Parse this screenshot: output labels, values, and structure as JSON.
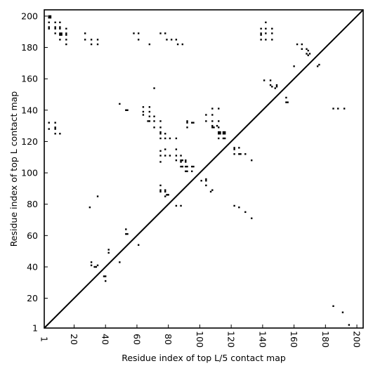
{
  "chart_data": {
    "type": "scatter",
    "xlabel": "Residue index of top L/5 contact map",
    "ylabel": "Residue index of top L contact map",
    "xlim": [
      1,
      204
    ],
    "ylim": [
      1,
      204
    ],
    "xticks": [
      1,
      20,
      40,
      60,
      80,
      100,
      120,
      140,
      160,
      180,
      200
    ],
    "yticks": [
      1,
      20,
      40,
      60,
      80,
      100,
      120,
      140,
      160,
      180,
      200
    ],
    "diagonal": true,
    "grid": false,
    "marker": "square",
    "marker_color": "#000000",
    "points": [
      [
        4,
        199
      ],
      [
        4,
        200
      ],
      [
        5,
        199
      ],
      [
        5,
        200
      ],
      [
        4,
        193
      ],
      [
        4,
        192
      ],
      [
        4,
        196
      ],
      [
        8,
        196
      ],
      [
        8,
        193
      ],
      [
        8,
        192
      ],
      [
        8,
        189
      ],
      [
        11,
        196
      ],
      [
        11,
        193
      ],
      [
        11,
        192
      ],
      [
        11,
        189
      ],
      [
        11,
        188
      ],
      [
        12,
        189
      ],
      [
        12,
        188
      ],
      [
        15,
        189
      ],
      [
        15,
        188
      ],
      [
        15,
        185
      ],
      [
        15,
        182
      ],
      [
        15,
        192
      ],
      [
        11,
        185
      ],
      [
        27,
        185
      ],
      [
        27,
        189
      ],
      [
        31,
        185
      ],
      [
        31,
        182
      ],
      [
        35,
        185
      ],
      [
        35,
        182
      ],
      [
        58,
        189
      ],
      [
        61,
        189
      ],
      [
        61,
        185
      ],
      [
        68,
        182
      ],
      [
        75,
        189
      ],
      [
        78,
        189
      ],
      [
        79,
        185
      ],
      [
        82,
        185
      ],
      [
        85,
        185
      ],
      [
        86,
        182
      ],
      [
        89,
        182
      ],
      [
        139,
        192
      ],
      [
        139,
        189
      ],
      [
        139,
        188
      ],
      [
        139,
        185
      ],
      [
        142,
        196
      ],
      [
        142,
        192
      ],
      [
        142,
        189
      ],
      [
        142,
        185
      ],
      [
        146,
        192
      ],
      [
        146,
        189
      ],
      [
        146,
        185
      ],
      [
        162,
        182
      ],
      [
        165,
        182
      ],
      [
        165,
        179
      ],
      [
        168,
        179
      ],
      [
        168,
        176
      ],
      [
        169,
        178
      ],
      [
        169,
        175
      ],
      [
        170,
        176
      ],
      [
        160,
        168
      ],
      [
        175,
        168
      ],
      [
        176,
        169
      ],
      [
        141,
        159
      ],
      [
        145,
        159
      ],
      [
        145,
        156
      ],
      [
        146,
        155
      ],
      [
        148,
        154
      ],
      [
        149,
        155
      ],
      [
        149,
        156
      ],
      [
        71,
        154
      ],
      [
        49,
        144
      ],
      [
        53,
        140
      ],
      [
        54,
        140
      ],
      [
        64,
        142
      ],
      [
        64,
        139
      ],
      [
        64,
        137
      ],
      [
        68,
        142
      ],
      [
        68,
        139
      ],
      [
        68,
        136
      ],
      [
        67,
        133
      ],
      [
        68,
        133
      ],
      [
        71,
        136
      ],
      [
        71,
        133
      ],
      [
        75,
        133
      ],
      [
        71,
        129
      ],
      [
        75,
        129
      ],
      [
        75,
        126
      ],
      [
        75,
        125
      ],
      [
        75,
        122
      ],
      [
        78,
        125
      ],
      [
        78,
        122
      ],
      [
        81,
        122
      ],
      [
        85,
        122
      ],
      [
        155,
        148
      ],
      [
        155,
        145
      ],
      [
        156,
        145
      ],
      [
        4,
        132
      ],
      [
        4,
        128
      ],
      [
        8,
        132
      ],
      [
        8,
        129
      ],
      [
        8,
        128
      ],
      [
        8,
        125
      ],
      [
        11,
        125
      ],
      [
        92,
        133
      ],
      [
        92,
        132
      ],
      [
        92,
        129
      ],
      [
        95,
        132
      ],
      [
        96,
        132
      ],
      [
        104,
        137
      ],
      [
        104,
        133
      ],
      [
        108,
        141
      ],
      [
        108,
        137
      ],
      [
        108,
        133
      ],
      [
        108,
        130
      ],
      [
        108,
        129
      ],
      [
        109,
        129
      ],
      [
        112,
        141
      ],
      [
        111,
        130
      ],
      [
        112,
        133
      ],
      [
        112,
        129
      ],
      [
        112,
        126
      ],
      [
        112,
        125
      ],
      [
        113,
        126
      ],
      [
        113,
        125
      ],
      [
        112,
        122
      ],
      [
        115,
        126
      ],
      [
        115,
        125
      ],
      [
        116,
        126
      ],
      [
        116,
        125
      ],
      [
        116,
        122
      ],
      [
        115,
        122
      ],
      [
        122,
        116
      ],
      [
        122,
        115
      ],
      [
        122,
        112
      ],
      [
        125,
        116
      ],
      [
        125,
        112
      ],
      [
        126,
        112
      ],
      [
        129,
        112
      ],
      [
        133,
        108
      ],
      [
        75,
        114
      ],
      [
        75,
        111
      ],
      [
        75,
        107
      ],
      [
        78,
        115
      ],
      [
        78,
        111
      ],
      [
        81,
        111
      ],
      [
        85,
        115
      ],
      [
        85,
        111
      ],
      [
        85,
        108
      ],
      [
        88,
        111
      ],
      [
        88,
        108
      ],
      [
        88,
        107
      ],
      [
        89,
        108
      ],
      [
        89,
        104
      ],
      [
        88,
        104
      ],
      [
        91,
        108
      ],
      [
        91,
        107
      ],
      [
        91,
        104
      ],
      [
        91,
        101
      ],
      [
        92,
        104
      ],
      [
        92,
        101
      ],
      [
        95,
        104
      ],
      [
        95,
        101
      ],
      [
        96,
        104
      ],
      [
        101,
        95
      ],
      [
        104,
        96
      ],
      [
        104,
        95
      ],
      [
        104,
        92
      ],
      [
        107,
        88
      ],
      [
        108,
        89
      ],
      [
        75,
        92
      ],
      [
        75,
        89
      ],
      [
        75,
        88
      ],
      [
        78,
        89
      ],
      [
        78,
        88
      ],
      [
        79,
        86
      ],
      [
        78,
        85
      ],
      [
        80,
        86
      ],
      [
        35,
        85
      ],
      [
        30,
        78
      ],
      [
        85,
        79
      ],
      [
        88,
        79
      ],
      [
        122,
        79
      ],
      [
        125,
        78
      ],
      [
        129,
        75
      ],
      [
        133,
        71
      ],
      [
        53,
        64
      ],
      [
        53,
        61
      ],
      [
        54,
        61
      ],
      [
        61,
        54
      ],
      [
        49,
        43
      ],
      [
        42,
        51
      ],
      [
        42,
        49
      ],
      [
        31,
        43
      ],
      [
        31,
        41
      ],
      [
        33,
        40
      ],
      [
        34,
        40
      ],
      [
        35,
        41
      ],
      [
        39,
        34
      ],
      [
        40,
        34
      ],
      [
        40,
        31
      ],
      [
        185,
        15
      ],
      [
        191,
        11
      ],
      [
        195,
        3
      ],
      [
        185,
        141
      ],
      [
        188,
        141
      ],
      [
        192,
        141
      ]
    ]
  }
}
